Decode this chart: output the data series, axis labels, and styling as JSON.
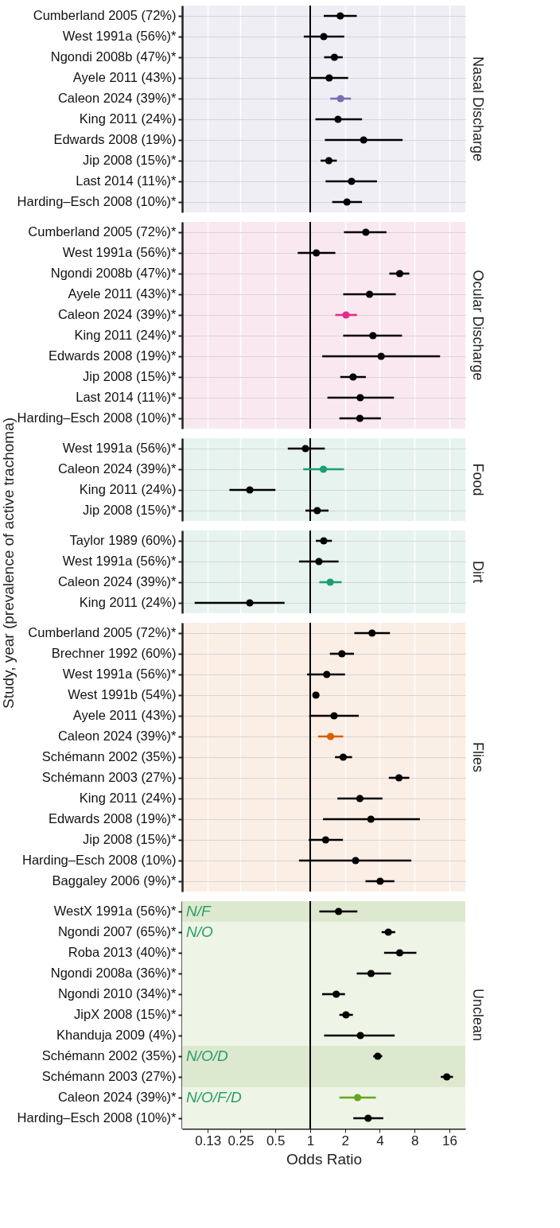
{
  "chart_data": [
    {
      "type": "scatter",
      "title": "Nasal Discharge",
      "orientation": "horizontal",
      "log": "x",
      "grid": true,
      "tick_labels": "y",
      "xlim": [
        0.078,
        22
      ],
      "xticks": [
        0.13,
        0.25,
        0.5,
        1,
        2,
        4,
        8,
        16
      ],
      "categories": [
        "Cumberland 2005 (72%)",
        "West 1991a (56%)*",
        "Ngondi 2008b (47%)*",
        "Ayele 2011 (43%)",
        "Caleon 2024 (39%)*",
        "King 2011 (24%)",
        "Edwards 2008 (19%)",
        "Jip 2008 (15%)*",
        "Last 2014 (11%)*",
        "Harding–Esch 2008 (10%)*"
      ],
      "values": [
        1.82,
        1.31,
        1.62,
        1.46,
        1.83,
        1.74,
        2.9,
        1.45,
        2.28,
        2.08
      ],
      "errors": [
        [
          1.31,
          2.53
        ],
        [
          0.88,
          1.97
        ],
        [
          1.32,
          1.91
        ],
        [
          1.0,
          2.13
        ],
        [
          1.49,
          2.25
        ],
        [
          1.11,
          2.81
        ],
        [
          1.34,
          6.3
        ],
        [
          1.23,
          1.7
        ],
        [
          1.36,
          3.78
        ],
        [
          1.55,
          2.81
        ]
      ],
      "colors": [
        "#000000",
        "#000000",
        "#000000",
        "#000000",
        "#7570b3",
        "#000000",
        "#000000",
        "#000000",
        "#000000",
        "#000000"
      ],
      "ref_lines": [
        {
          "axis": "x",
          "value": 1,
          "color": "#000000"
        }
      ]
    },
    {
      "type": "scatter",
      "title": "Ocular Discharge",
      "orientation": "horizontal",
      "log": "x",
      "grid": true,
      "tick_labels": "y",
      "xlim": [
        0.078,
        22
      ],
      "xticks": [
        0.13,
        0.25,
        0.5,
        1,
        2,
        4,
        8,
        16
      ],
      "categories": [
        "Cumberland 2005 (72%)*",
        "West 1991a (56%)*",
        "Ngondi 2008b (47%)*",
        "Ayele 2011 (43%)*",
        "Caleon 2024 (39%)*",
        "King 2011 (24%)*",
        "Edwards 2008 (19%)*",
        "Jip 2008 (15%)*",
        "Last 2014 (11%)*",
        "Harding–Esch 2008 (10%)*"
      ],
      "values": [
        3.03,
        1.13,
        5.95,
        3.26,
        2.04,
        3.49,
        4.11,
        2.35,
        2.71,
        2.69
      ],
      "errors": [
        [
          1.96,
          4.57
        ],
        [
          0.78,
          1.65
        ],
        [
          4.84,
          7.2
        ],
        [
          1.93,
          5.5
        ],
        [
          1.65,
          2.54
        ],
        [
          1.93,
          6.23
        ],
        [
          1.27,
          13.3
        ],
        [
          1.82,
          3.03
        ],
        [
          1.41,
          5.3
        ],
        [
          1.79,
          4.09
        ]
      ],
      "colors": [
        "#000000",
        "#000000",
        "#000000",
        "#000000",
        "#e7298a",
        "#000000",
        "#000000",
        "#000000",
        "#000000",
        "#000000"
      ],
      "ref_lines": [
        {
          "axis": "x",
          "value": 1,
          "color": "#000000"
        }
      ]
    },
    {
      "type": "scatter",
      "title": "Food",
      "orientation": "horizontal",
      "log": "x",
      "grid": true,
      "tick_labels": "y",
      "xlim": [
        0.078,
        22
      ],
      "xticks": [
        0.13,
        0.25,
        0.5,
        1,
        2,
        4,
        8,
        16
      ],
      "categories": [
        "West 1991a (56%)*",
        "Caleon 2024 (39%)*",
        "King 2011 (24%)",
        "Jip 2008 (15%)*"
      ],
      "values": [
        0.91,
        1.3,
        0.3,
        1.15
      ],
      "errors": [
        [
          0.64,
          1.34
        ],
        [
          0.87,
          1.96
        ],
        [
          0.2,
          0.5
        ],
        [
          0.91,
          1.44
        ]
      ],
      "colors": [
        "#000000",
        "#1b9e77",
        "#000000",
        "#000000"
      ],
      "ref_lines": [
        {
          "axis": "x",
          "value": 1,
          "color": "#000000"
        }
      ]
    },
    {
      "type": "scatter",
      "title": "Dirt",
      "orientation": "horizontal",
      "log": "x",
      "grid": true,
      "tick_labels": "y",
      "ylabel": "Study, year (prevalence of active trachoma)",
      "xlim": [
        0.078,
        22
      ],
      "xticks": [
        0.13,
        0.25,
        0.5,
        1,
        2,
        4,
        8,
        16
      ],
      "categories": [
        "Taylor 1989 (60%)",
        "West 1991a (56%)*",
        "Caleon 2024 (39%)*",
        "King 2011 (24%)"
      ],
      "values": [
        1.31,
        1.19,
        1.49,
        0.3
      ],
      "errors": [
        [
          1.12,
          1.54
        ],
        [
          0.8,
          1.76
        ],
        [
          1.2,
          1.87
        ],
        [
          0.1,
          0.6
        ]
      ],
      "colors": [
        "#000000",
        "#000000",
        "#1b9e77",
        "#000000"
      ],
      "ref_lines": [
        {
          "axis": "x",
          "value": 1,
          "color": "#000000"
        }
      ]
    },
    {
      "type": "scatter",
      "title": "Flies",
      "orientation": "horizontal",
      "log": "x",
      "grid": true,
      "tick_labels": "y",
      "xlim": [
        0.078,
        22
      ],
      "xticks": [
        0.13,
        0.25,
        0.5,
        1,
        2,
        4,
        8,
        16
      ],
      "categories": [
        "Cumberland 2005 (72%)*",
        "Brechner 1992 (60%)",
        "West 1991a (56%)*",
        "West 1991b (54%)",
        "Ayele 2011 (43%)",
        "Caleon 2024 (39%)*",
        "Schémann 2002 (35%)",
        "Schémann 2003 (27%)",
        "King 2011 (24%)",
        "Edwards 2008 (19%)*",
        "Jip 2008 (15%)*",
        "Harding–Esch 2008 (10%)",
        "Baggaley 2006 (9%)*"
      ],
      "values": [
        3.43,
        1.88,
        1.39,
        1.12,
        1.61,
        1.5,
        1.93,
        5.86,
        2.69,
        3.35,
        1.36,
        2.47,
        4.03
      ],
      "errors": [
        [
          2.41,
          4.9
        ],
        [
          1.48,
          2.39
        ],
        [
          0.94,
          2.0
        ],
        null,
        [
          0.98,
          2.63
        ],
        [
          1.17,
          1.93
        ],
        [
          1.64,
          2.3
        ],
        [
          4.79,
          7.2
        ],
        [
          1.72,
          4.22
        ],
        [
          1.29,
          8.9
        ],
        [
          0.97,
          1.92
        ],
        [
          0.8,
          7.5
        ],
        [
          3.01,
          5.35
        ]
      ],
      "colors": [
        "#000000",
        "#000000",
        "#000000",
        "#000000",
        "#000000",
        "#d95f02",
        "#000000",
        "#000000",
        "#000000",
        "#000000",
        "#000000",
        "#000000",
        "#000000"
      ],
      "ref_lines": [
        {
          "axis": "x",
          "value": 1,
          "color": "#000000"
        }
      ]
    },
    {
      "type": "scatter",
      "title": "Unclean",
      "orientation": "horizontal",
      "log": "x",
      "grid": true,
      "xlabel": "Odds Ratio",
      "xlim": [
        0.078,
        22
      ],
      "xticks": [
        0.13,
        0.25,
        0.5,
        1,
        2,
        4,
        8,
        16
      ],
      "categories": [
        "WestX 1991a (56%)*",
        "Ngondi 2007 (65%)*",
        "Roba 2013 (40%)*",
        "Ngondi 2008a (36%)*",
        "Ngondi 2010 (34%)*",
        "JipX 2008 (15%)*",
        "Khanduja 2009 (4%)",
        "Schémann 2002 (35%)",
        "Schémann 2003 (27%)",
        "Caleon 2024 (39%)*",
        "Harding–Esch 2008 (10%)*"
      ],
      "values": [
        1.76,
        4.74,
        5.95,
        3.36,
        1.68,
        2.04,
        2.72,
        3.84,
        15.2,
        2.57,
        3.17
      ],
      "errors": [
        [
          1.2,
          2.56
        ],
        [
          4.15,
          5.44
        ],
        [
          4.36,
          8.3
        ],
        [
          2.53,
          5.0
        ],
        [
          1.27,
          2.0
        ],
        [
          1.79,
          2.34
        ],
        [
          1.32,
          5.38
        ],
        [
          3.51,
          4.2
        ],
        [
          13.5,
          17.2
        ],
        [
          1.79,
          3.7
        ],
        [
          2.36,
          4.29
        ]
      ],
      "colors": [
        "#000000",
        "#000000",
        "#000000",
        "#000000",
        "#000000",
        "#000000",
        "#000000",
        "#000000",
        "#000000",
        "#66a61e",
        "#000000"
      ],
      "ref_lines": [
        {
          "axis": "x",
          "value": 1,
          "color": "#000000"
        }
      ],
      "bands": [
        {
          "axis": "y",
          "from": "WestX 1991a (56%)*",
          "to": "WestX 1991a (56%)*",
          "label": "N/F",
          "color": "#dde9cf"
        },
        {
          "axis": "y",
          "from": "Ngondi 2007 (65%)*",
          "to": "Khanduja 2009 (4%)",
          "label": "N/O",
          "color": "#eef5e6"
        },
        {
          "axis": "y",
          "from": "Schémann 2002 (35%)",
          "to": "Schémann 2003 (27%)",
          "label": "N/O/D",
          "color": "#dde9cf"
        },
        {
          "axis": "y",
          "from": "Caleon 2024 (39%)*",
          "to": "Harding–Esch 2008 (10%)*",
          "label": "N/O/F/D",
          "color": "#eef5e6"
        }
      ]
    }
  ]
}
